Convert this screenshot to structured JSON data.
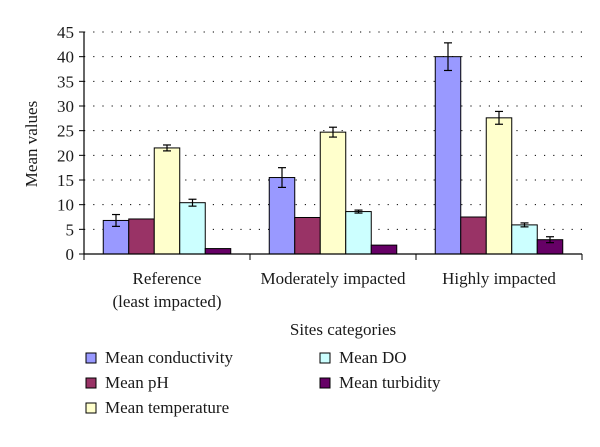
{
  "chart_data": {
    "type": "bar",
    "xlabel": "Sites categories",
    "ylabel": "Mean values",
    "ylim": [
      0,
      45
    ],
    "yticks": [
      0,
      5,
      10,
      15,
      20,
      25,
      30,
      35,
      40,
      45
    ],
    "grid": "horizontal dotted",
    "legend_position": "bottom",
    "categories": [
      [
        "Reference",
        "(least impacted)"
      ],
      [
        "Moderately impacted"
      ],
      [
        "Highly impacted"
      ]
    ],
    "series": [
      {
        "name": "Mean conductivity",
        "color": "#9999ff",
        "values": [
          6.8,
          15.5,
          40.0
        ],
        "errors": [
          1.2,
          2.0,
          2.8
        ]
      },
      {
        "name": "Mean pH",
        "color": "#993366",
        "values": [
          7.1,
          7.4,
          7.5
        ],
        "errors": [
          0,
          0,
          0
        ]
      },
      {
        "name": "Mean temperature",
        "color": "#ffffcc",
        "values": [
          21.5,
          24.7,
          27.6
        ],
        "errors": [
          0.6,
          1.0,
          1.3
        ]
      },
      {
        "name": "Mean DO",
        "color": "#ccffff",
        "values": [
          10.4,
          8.6,
          5.9
        ],
        "errors": [
          0.7,
          0.3,
          0.4
        ]
      },
      {
        "name": "Mean turbidity",
        "color": "#660066",
        "values": [
          1.1,
          1.8,
          2.9
        ],
        "errors": [
          0,
          0,
          0.6
        ]
      }
    ]
  }
}
